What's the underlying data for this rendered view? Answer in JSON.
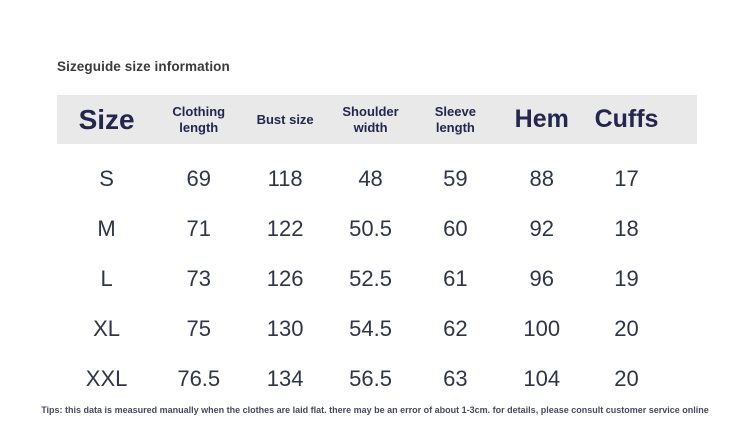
{
  "page": {
    "title": "Sizeguide size information"
  },
  "colors": {
    "header_background": "#e9e9e9",
    "header_text": "#23264d",
    "body_text": "#2f3448",
    "title_text": "#3b3b3d",
    "footnote_text": "#474a5e"
  },
  "table": {
    "columns": [
      {
        "key": "size",
        "label": "Size"
      },
      {
        "key": "clothing_length",
        "label": "Clothing length"
      },
      {
        "key": "bust_size",
        "label": "Bust size"
      },
      {
        "key": "shoulder_width",
        "label": "Shoulder width"
      },
      {
        "key": "sleeve_length",
        "label": "Sleeve length"
      },
      {
        "key": "hem",
        "label": "Hem"
      },
      {
        "key": "cuffs",
        "label": "Cuffs"
      }
    ],
    "rows": [
      {
        "size": "S",
        "values": [
          "69",
          "118",
          "48",
          "59",
          "88",
          "17"
        ]
      },
      {
        "size": "M",
        "values": [
          "71",
          "122",
          "50.5",
          "60",
          "92",
          "18"
        ]
      },
      {
        "size": "L",
        "values": [
          "73",
          "126",
          "52.5",
          "61",
          "96",
          "19"
        ]
      },
      {
        "size": "XL",
        "values": [
          "75",
          "130",
          "54.5",
          "62",
          "100",
          "20"
        ]
      },
      {
        "size": "XXL",
        "values": [
          "76.5",
          "134",
          "56.5",
          "63",
          "104",
          "20"
        ]
      }
    ]
  },
  "footnote": {
    "text": "Tips: this data is measured manually when the clothes are laid flat. there may be an error of about 1-3cm. for details, please consult customer service online"
  }
}
